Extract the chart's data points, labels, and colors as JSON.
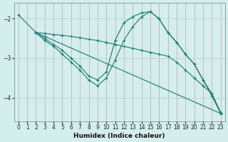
{
  "bg_color": "#d4eeed",
  "grid_color": "#b8d8d5",
  "line_color": "#1a7a6e",
  "xlabel": "Humidex (Indice chaleur)",
  "xlim": [
    -0.5,
    23.5
  ],
  "ylim": [
    -4.6,
    -1.6
  ],
  "yticks": [
    -4,
    -3,
    -2
  ],
  "xticks": [
    0,
    1,
    2,
    3,
    4,
    5,
    6,
    7,
    8,
    9,
    10,
    11,
    12,
    13,
    14,
    15,
    16,
    17,
    18,
    19,
    20,
    21,
    22,
    23
  ],
  "lines": [
    {
      "x": [
        0,
        2,
        3,
        23
      ],
      "y": [
        -1.9,
        -2.35,
        -2.45,
        -4.4
      ]
    },
    {
      "x": [
        2,
        3,
        4,
        5,
        6,
        7,
        8,
        9,
        10,
        11,
        12,
        13,
        14,
        15,
        16,
        17,
        18,
        19,
        20,
        21,
        22,
        23
      ],
      "y": [
        -2.35,
        -2.5,
        -2.65,
        -2.8,
        -3.0,
        -3.2,
        -3.45,
        -3.55,
        -3.35,
        -2.55,
        -2.1,
        -1.95,
        -1.85,
        -1.82,
        -2.0,
        -2.35,
        -2.6,
        -2.9,
        -3.15,
        -3.55,
        -3.9,
        -4.38
      ]
    },
    {
      "x": [
        2,
        3,
        4,
        5,
        6,
        7,
        8,
        9,
        10,
        11,
        12,
        13,
        14,
        15,
        16,
        17,
        18,
        19,
        20,
        21,
        22,
        23
      ],
      "y": [
        -2.35,
        -2.55,
        -2.7,
        -2.9,
        -3.1,
        -3.3,
        -3.55,
        -3.7,
        -3.5,
        -3.05,
        -2.55,
        -2.2,
        -1.95,
        -1.82,
        -2.0,
        -2.35,
        -2.6,
        -2.9,
        -3.15,
        -3.55,
        -3.95,
        -4.4
      ]
    },
    {
      "x": [
        2,
        3,
        4,
        5,
        6,
        7,
        8,
        9,
        10,
        11,
        12,
        13,
        14,
        15,
        16,
        17,
        18,
        19,
        20,
        21,
        22,
        23
      ],
      "y": [
        -2.35,
        -2.37,
        -2.4,
        -2.42,
        -2.45,
        -2.48,
        -2.52,
        -2.55,
        -2.6,
        -2.65,
        -2.7,
        -2.75,
        -2.8,
        -2.85,
        -2.9,
        -2.95,
        -3.1,
        -3.3,
        -3.5,
        -3.7,
        -3.9,
        -4.38
      ]
    }
  ]
}
